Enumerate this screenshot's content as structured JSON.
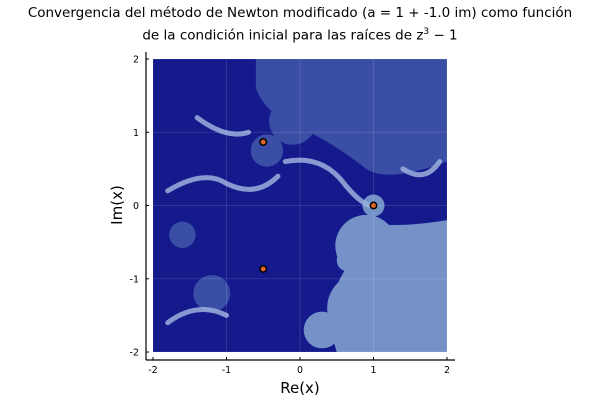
{
  "chart_data": {
    "type": "heatmap",
    "title_line1": "Convergencia del método de Newton modificado (a = 1 + -1.0 im) como función",
    "title_line2_prefix": "de la condición inicial para las raíces de z",
    "title_line2_sup": "3",
    "title_line2_suffix": " − 1",
    "xlabel": "Re(x)",
    "ylabel": "Im(x)",
    "xlim": [
      -2,
      2
    ],
    "ylim": [
      -2,
      2
    ],
    "xticks": [
      -2,
      -1,
      0,
      1,
      2
    ],
    "yticks": [
      -2,
      -1,
      0,
      1,
      2
    ],
    "xtick_labels": [
      "-2",
      "-1",
      "0",
      "1",
      "2"
    ],
    "ytick_labels": [
      "-2",
      "-1",
      "0",
      "1",
      "2"
    ],
    "grid": true,
    "legend": "none",
    "colors": {
      "basin_root_real": "#7592c8",
      "basin_root_upper": "#3a4ea6",
      "basin_root_lower": "#141a8c",
      "basin_light": "#9bb0dc",
      "root_marker_fill": "#e0672a",
      "root_marker_edge": "#000000"
    },
    "roots": [
      {
        "x": 1.0,
        "y": 0.0
      },
      {
        "x": -0.5,
        "y": 0.866
      },
      {
        "x": -0.5,
        "y": -0.866
      }
    ]
  }
}
